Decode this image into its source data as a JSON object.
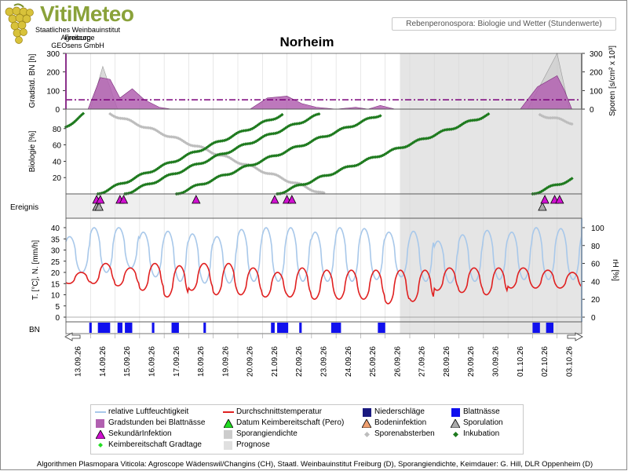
{
  "brand": {
    "logo": "VitiMeteo",
    "org_lines": [
      "Staatliches Weinbauinstitut Freiburg",
      "Agroscope",
      "GEOsens GmbH"
    ]
  },
  "header": {
    "subtitle": "Rebenperonospora: Biologie und Wetter (Stundenwerte)",
    "station": "Norheim"
  },
  "colors": {
    "gradstunden": "#b160b0",
    "sporangien": "#cccccc",
    "schwelle": "#7a007a",
    "inkubation": "#1e7a1e",
    "sporenabsterben": "#bdbdbd",
    "temperatur": "#e02020",
    "luftfeuchte": "#a8c8ea",
    "niederschlag": "#1a1a80",
    "blattnaesse": "#1010ee",
    "prognose": "#e0e0e0"
  },
  "chart_data": {
    "type": "line",
    "x_labels": [
      "13.09.26",
      "14.09.26",
      "15.09.26",
      "16.09.26",
      "17.09.26",
      "18.09.26",
      "19.09.26",
      "20.09.26",
      "21.09.26",
      "22.09.26",
      "23.09.26",
      "24.09.26",
      "25.09.26",
      "26.09.26",
      "27.09.26",
      "28.09.26",
      "29.09.26",
      "30.09.26",
      "01.10.26",
      "02.10.26",
      "03.10.26"
    ],
    "forecast_from_day": 13.6,
    "panels": {
      "gradstunden": {
        "ylabel_left": "Gradstd. BN [h]",
        "ylabel_right": "Sporen [s/cm² x 10³]",
        "ylim": [
          0,
          300
        ],
        "ticks_left": [
          "0",
          "100",
          "200",
          "300"
        ],
        "ticks_right": [
          "0",
          "100",
          "200",
          "300"
        ],
        "threshold": 50,
        "gradstunden_series": [
          [
            0.9,
            0
          ],
          [
            1.4,
            170
          ],
          [
            1.8,
            160
          ],
          [
            2.2,
            60
          ],
          [
            2.7,
            110
          ],
          [
            3.2,
            50
          ],
          [
            3.8,
            10
          ],
          [
            4.3,
            0
          ],
          [
            7.5,
            0
          ],
          [
            8.2,
            60
          ],
          [
            9.0,
            70
          ],
          [
            9.6,
            30
          ],
          [
            10.2,
            10
          ],
          [
            11.0,
            0
          ],
          [
            11.8,
            10
          ],
          [
            12.3,
            0
          ],
          [
            12.8,
            20
          ],
          [
            13.4,
            0
          ],
          [
            18.5,
            0
          ],
          [
            19.2,
            120
          ],
          [
            20.0,
            180
          ],
          [
            20.3,
            100
          ],
          [
            20.6,
            0
          ]
        ],
        "sporangien_series": [
          [
            1.0,
            0
          ],
          [
            1.5,
            230
          ],
          [
            2.1,
            0
          ],
          [
            18.8,
            0
          ],
          [
            20.0,
            300
          ],
          [
            20.5,
            0
          ]
        ]
      },
      "biologie": {
        "ylabel": "Biologie [%]",
        "ylim": [
          0,
          100
        ],
        "ticks": [
          "20",
          "40",
          "60",
          "80"
        ],
        "inkubation": [
          {
            "start": [
              0.0,
              82
            ],
            "end": [
              0.7,
              97
            ]
          },
          {
            "start": [
              1.3,
              0
            ],
            "end": [
              8.8,
              97
            ]
          },
          {
            "start": [
              2.4,
              0
            ],
            "end": [
              10.3,
              97
            ]
          },
          {
            "start": [
              4.5,
              0
            ],
            "end": [
              12.8,
              97
            ]
          },
          {
            "start": [
              8.6,
              0
            ],
            "end": [
              17.2,
              97
            ]
          },
          {
            "start": [
              19.0,
              0
            ],
            "end": [
              20.6,
              18
            ]
          }
        ],
        "sporenabsterben": [
          {
            "start": [
              1.8,
              98
            ],
            "end": [
              10.5,
              0
            ]
          },
          {
            "start": [
              19.3,
              97
            ],
            "end": [
              20.6,
              87
            ]
          }
        ]
      },
      "ereignis": {
        "label": "Ereignis",
        "sekundaerinfektion": [
          1.25,
          1.4,
          2.2,
          2.35,
          5.3,
          8.5,
          9.0,
          9.2,
          19.5,
          19.9,
          20.1
        ],
        "sporulation": [
          1.25,
          1.35,
          19.4
        ]
      },
      "wetter": {
        "ylabel_left": "T. [°C], N. [mm/h]",
        "ylabel_right": "rH [%]",
        "ylim_left": [
          0,
          40
        ],
        "ylim_right": [
          0,
          100
        ],
        "ticks_left": [
          "0",
          "5",
          "10",
          "15",
          "20",
          "25",
          "30",
          "35",
          "40"
        ],
        "ticks_right": [
          "0",
          "20",
          "40",
          "60",
          "80",
          "100"
        ],
        "temperatur_tag_max": [
          20,
          24,
          22,
          24,
          23,
          24,
          24,
          22,
          20,
          22,
          21,
          21,
          21,
          21,
          21,
          22,
          22,
          22,
          22,
          21,
          20
        ],
        "temperatur_nacht_min": [
          15,
          15,
          14,
          12,
          9,
          12,
          10,
          10,
          9,
          9,
          8,
          8,
          8,
          6,
          7,
          12,
          11,
          10,
          13,
          13,
          13
        ],
        "rh_nacht_max": [
          90,
          100,
          100,
          95,
          96,
          93,
          90,
          98,
          100,
          100,
          95,
          100,
          99,
          95,
          96,
          85,
          92,
          97,
          95,
          100,
          99
        ],
        "rh_tag_min": [
          50,
          50,
          55,
          45,
          40,
          38,
          38,
          40,
          40,
          40,
          40,
          40,
          42,
          45,
          40,
          38,
          40,
          42,
          42,
          42,
          42
        ]
      },
      "bn": {
        "label": "BN",
        "blattnaesse_blocks": [
          [
            0.95,
            1.05
          ],
          [
            1.3,
            1.8
          ],
          [
            2.1,
            2.3
          ],
          [
            2.4,
            2.7
          ],
          [
            3.5,
            3.6
          ],
          [
            4.3,
            4.6
          ],
          [
            5.6,
            5.7
          ],
          [
            8.35,
            8.5
          ],
          [
            8.6,
            9.05
          ],
          [
            9.5,
            9.6
          ],
          [
            10.8,
            11.2
          ],
          [
            12.7,
            13.0
          ],
          [
            19.0,
            19.3
          ],
          [
            19.55,
            19.85
          ]
        ]
      }
    }
  },
  "legend": {
    "items": [
      "relative Luftfeuchtigkeit",
      "Durchschnittstemperatur",
      "Niederschläge",
      "Blattnässe",
      "Gradstunden bei Blattnässe",
      "Datum Keimbereitschaft (Pero)",
      "Bodeninfektion",
      "Sporulation",
      "SekundärInfektion",
      "Sporangiendichte",
      "Sporenabsterben",
      "Inkubation",
      "Keimbereitschaft Gradtage",
      "Prognose"
    ]
  },
  "footer": {
    "text": "Algorithmen Plasmopara Viticola: Agroscope Wädenswil/Changins (CH), Staatl. Weinbauinstitut Freiburg (D), Sporangiendichte, Keimdauer: G. Hill, DLR Oppenheim (D)"
  }
}
